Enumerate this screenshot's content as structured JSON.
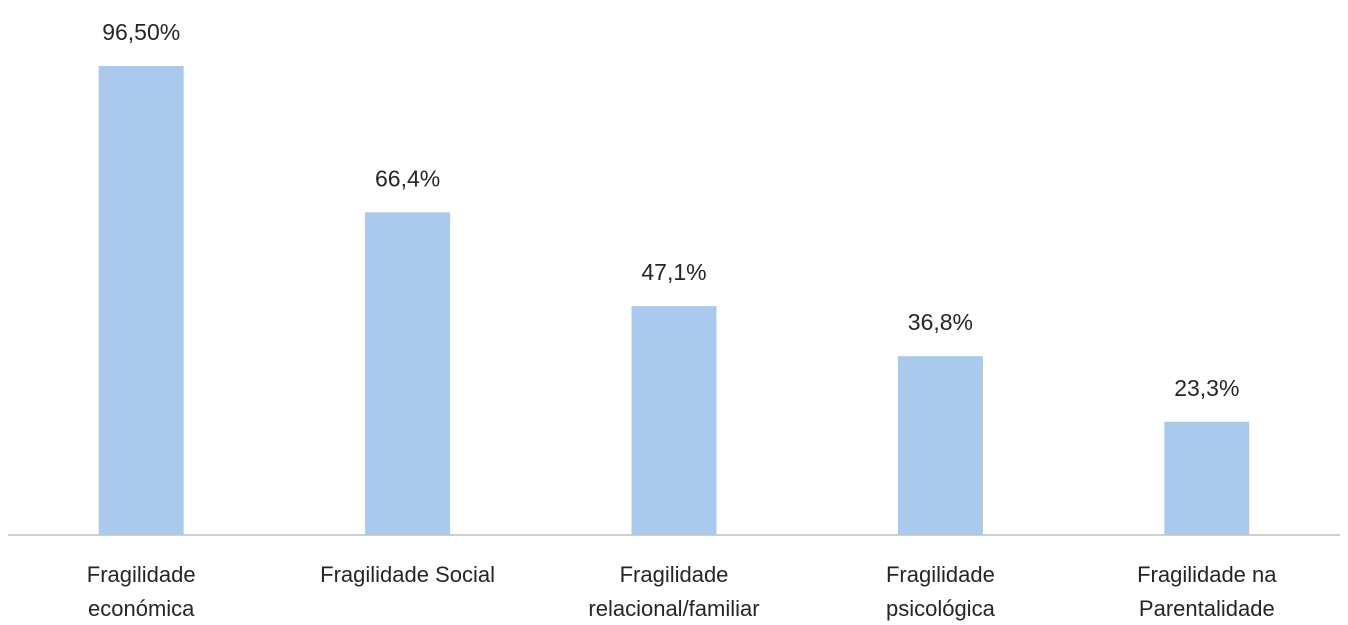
{
  "chart_data": {
    "type": "bar",
    "categories": [
      [
        "Fragilidade",
        "económica"
      ],
      [
        "Fragilidade Social"
      ],
      [
        "Fragilidade",
        "relacional/familiar"
      ],
      [
        "Fragilidade",
        "psicológica"
      ],
      [
        "Fragilidade na",
        "Parentalidade"
      ]
    ],
    "values": [
      96.5,
      66.4,
      47.1,
      36.8,
      23.3
    ],
    "data_labels": [
      "96,50%",
      "66,4%",
      "47,1%",
      "36,8%",
      "23,3%"
    ],
    "ylim": [
      0,
      100
    ],
    "grid": false,
    "legend": "none",
    "title": "",
    "xlabel": "",
    "ylabel": "",
    "colors": {
      "bar": "#a9caec",
      "axis": "#bfbfbf",
      "text": "#262626"
    }
  }
}
